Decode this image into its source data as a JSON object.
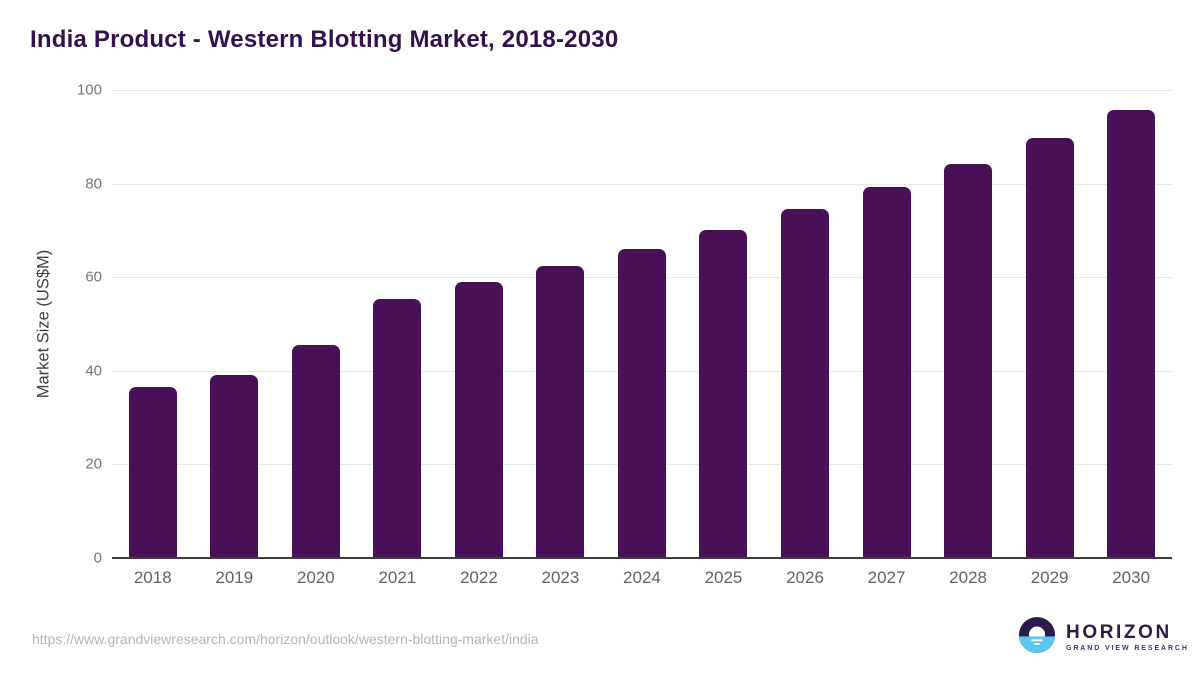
{
  "title": "India Product - Western Blotting Market, 2018-2030",
  "chart_data": {
    "type": "bar",
    "categories": [
      "2018",
      "2019",
      "2020",
      "2021",
      "2022",
      "2023",
      "2024",
      "2025",
      "2026",
      "2027",
      "2028",
      "2029",
      "2030"
    ],
    "values": [
      36.6,
      39.1,
      45.5,
      55.4,
      59.0,
      62.4,
      66.0,
      70.0,
      74.6,
      79.3,
      84.2,
      89.8,
      95.7
    ],
    "title": "India Product - Western Blotting Market, 2018-2030",
    "xlabel": "",
    "ylabel": "Market Size (US$M)",
    "ylim": [
      0,
      100
    ],
    "yticks": [
      0,
      20,
      40,
      60,
      80,
      100
    ],
    "grid": true,
    "legend": "none",
    "bar_color": "#481157"
  },
  "footer": {
    "source_url": "https://www.grandviewresearch.com/horizon/outlook/western-blotting-market/india",
    "logo": {
      "brand": "HORIZON",
      "subtitle": "GRAND VIEW RESEARCH"
    }
  },
  "colors": {
    "bar": "#481157",
    "title_text": "#33114d",
    "gridline": "#e8e8e8",
    "axis_line": "#3d3d3d",
    "tick_text": "#757575",
    "category_text": "#5f6368",
    "url_text": "#b5b5b5",
    "logo_purple": "#2b1b4a",
    "logo_blue": "#5bc7f0"
  }
}
